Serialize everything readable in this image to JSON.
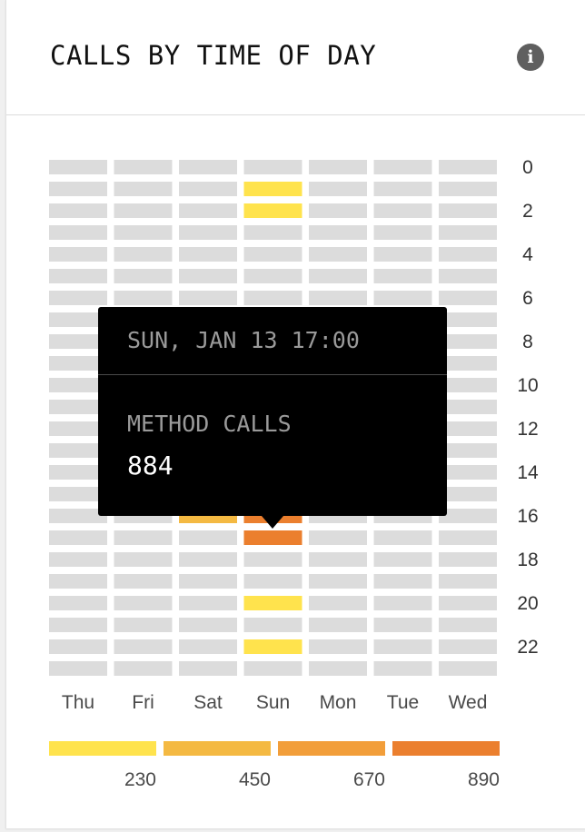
{
  "card": {
    "title": "CALLS BY TIME OF DAY",
    "info_icon": "info-icon"
  },
  "chart_data": {
    "type": "heatmap",
    "title": "CALLS BY TIME OF DAY",
    "x_categories": [
      "Thu",
      "Fri",
      "Sat",
      "Sun",
      "Mon",
      "Tue",
      "Wed"
    ],
    "y_hours": [
      0,
      1,
      2,
      3,
      4,
      5,
      6,
      7,
      8,
      9,
      10,
      11,
      12,
      13,
      14,
      15,
      16,
      17,
      18,
      19,
      20,
      21,
      22,
      23
    ],
    "y_tick_labels": [
      "0",
      "2",
      "4",
      "6",
      "8",
      "10",
      "12",
      "14",
      "16",
      "18",
      "20",
      "22"
    ],
    "cells": [
      {
        "day": "Sun",
        "hour": 1,
        "value": 230
      },
      {
        "day": "Sun",
        "hour": 2,
        "value": 230
      },
      {
        "day": "Sat",
        "hour": 16,
        "value": 450
      },
      {
        "day": "Sun",
        "hour": 16,
        "value": 890
      },
      {
        "day": "Sun",
        "hour": 17,
        "value": 884
      },
      {
        "day": "Sun",
        "hour": 20,
        "value": 230
      },
      {
        "day": "Sun",
        "hour": 22,
        "value": 230
      }
    ],
    "empty_color": "#dcdcdc",
    "legend": {
      "labels": [
        "230",
        "450",
        "670",
        "890"
      ],
      "colors": [
        "#ffe34d",
        "#f4b942",
        "#f29e3a",
        "#eb7f2e"
      ]
    },
    "grid": false
  },
  "tooltip": {
    "date": "SUN, JAN 13 17:00",
    "metric_label": "METHOD CALLS",
    "value": "884"
  }
}
